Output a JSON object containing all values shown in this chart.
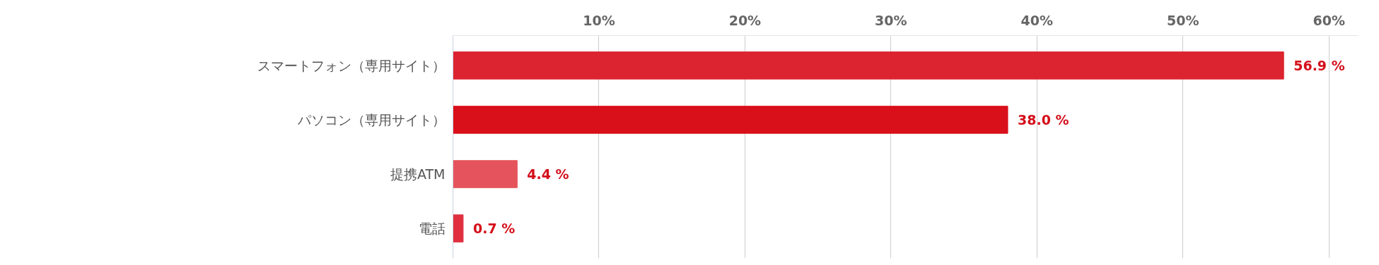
{
  "chart_data": {
    "type": "bar",
    "orientation": "horizontal",
    "categories": [
      "スマートフォン（専用サイト）",
      "パソコン（専用サイト）",
      "提携ATM",
      "電話"
    ],
    "values": [
      56.9,
      38.0,
      4.4,
      0.7
    ],
    "colors": [
      "#dc2430",
      "#d90f1a",
      "#e5545c",
      "#e03040"
    ],
    "value_labels": [
      "56.9 %",
      "38.0 %",
      "4.4 %",
      "0.7 %"
    ],
    "xlim": [
      0,
      62
    ],
    "xticks": [
      {
        "value": 10,
        "label": "10%"
      },
      {
        "value": 20,
        "label": "20%"
      },
      {
        "value": 30,
        "label": "30%"
      },
      {
        "value": 40,
        "label": "40%"
      },
      {
        "value": 50,
        "label": "50%"
      },
      {
        "value": 60,
        "label": "60%"
      }
    ],
    "grid": "x",
    "legend": false
  }
}
